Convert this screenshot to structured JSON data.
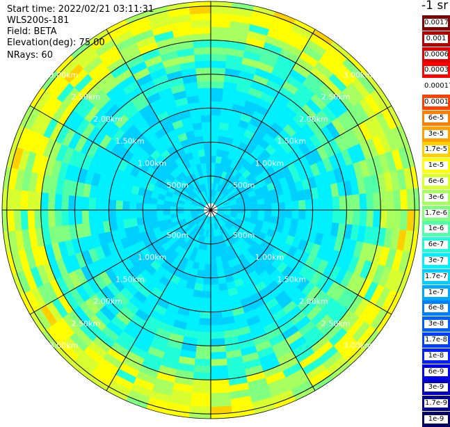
{
  "header": {
    "start_time": "Start time: 2022/02/21 03:11:31",
    "instrument": "WLS200s-181",
    "field": "Field: BETA",
    "elevation": "Elevation(deg): 75.00",
    "nrays": "NRays: 60"
  },
  "colorbar": {
    "unit": "-1 sr",
    "ticks": [
      "0.0017",
      "0.001",
      "0.0006",
      "0.0003",
      "0.00017",
      "0.0001",
      "6e-5",
      "3e-5",
      "1.7e-5",
      "1e-5",
      "6e-6",
      "3e-6",
      "1.7e-6",
      "1e-6",
      "6e-7",
      "3e-7",
      "1.7e-7",
      "1e-7",
      "6e-8",
      "3e-8",
      "1.7e-8",
      "1e-8",
      "6e-9",
      "3e-9",
      "1.7e-9",
      "1e-9"
    ],
    "colors": [
      "#7f0000",
      "#b20000",
      "#e00000",
      "#ff0000",
      "#ffffff",
      "#ff4000",
      "#ff8000",
      "#ffa000",
      "#ffd000",
      "#ffff00",
      "#d8ff30",
      "#a8ff60",
      "#80ff80",
      "#50ffa8",
      "#20ffd8",
      "#00f0ff",
      "#00d0ff",
      "#00a8ff",
      "#0080ff",
      "#0060ff",
      "#0040ff",
      "#0020ff",
      "#0000f0",
      "#0000c0",
      "#000090",
      "#000060"
    ]
  },
  "chart_data": {
    "type": "heatmap",
    "projection": "polar",
    "field": "BETA",
    "rays": 60,
    "range_rings": [
      "500m",
      "1.00km",
      "1.50km",
      "2.00km",
      "2.50km",
      "3.00km"
    ],
    "ring_ranges_km": [
      0.5,
      1.0,
      1.5,
      2.0,
      2.5,
      3.0
    ],
    "max_range_km": 3.07,
    "spoke_count": 12,
    "grid": true,
    "color_scale": "log",
    "value_bands": [
      {
        "from_km": 0.1,
        "to_km": 1.8,
        "dominant": "6e-7"
      },
      {
        "from_km": 1.8,
        "to_km": 2.5,
        "dominant": "3e-7 to 1.7e-6"
      },
      {
        "from_km": 2.5,
        "to_km": 3.07,
        "dominant": "1.7e-6 to 6e-6"
      }
    ]
  }
}
